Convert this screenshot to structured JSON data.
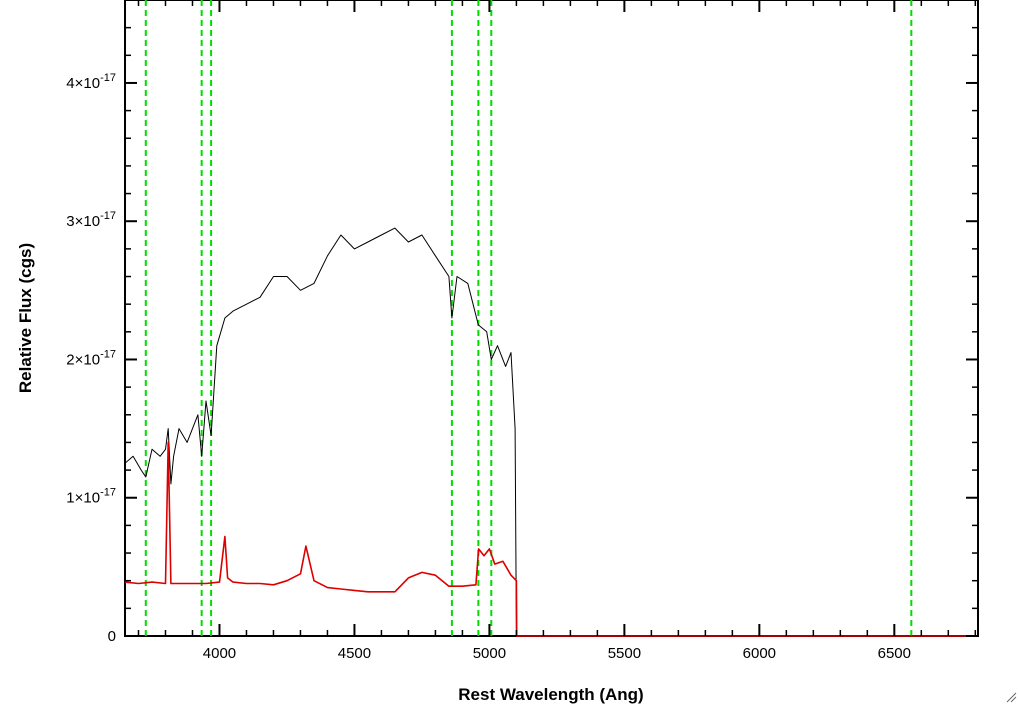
{
  "chart_data": {
    "type": "line",
    "xlabel": "Rest Wavelength (Ang)",
    "ylabel": "Relative Flux (cgs)",
    "xlim": [
      3650,
      6810
    ],
    "ylim": [
      0,
      4.6e-17
    ],
    "grid": false,
    "x_ticks": [
      {
        "value": 4000,
        "label": "4000"
      },
      {
        "value": 4500,
        "label": "4500"
      },
      {
        "value": 5000,
        "label": "5000"
      },
      {
        "value": 5500,
        "label": "5500"
      },
      {
        "value": 6000,
        "label": "6000"
      },
      {
        "value": 6500,
        "label": "6500"
      }
    ],
    "y_ticks": [
      {
        "value": 0,
        "mantissa": "0",
        "exponent": ""
      },
      {
        "value": 1e-17,
        "mantissa": "1×10",
        "exponent": "-17"
      },
      {
        "value": 2e-17,
        "mantissa": "2×10",
        "exponent": "-17"
      },
      {
        "value": 3e-17,
        "mantissa": "3×10",
        "exponent": "-17"
      },
      {
        "value": 4e-17,
        "mantissa": "4×10",
        "exponent": "-17"
      }
    ],
    "vertical_lines": {
      "color": "#00dd00",
      "style": "dashed",
      "x": [
        3727,
        3934,
        3969,
        4861,
        4959,
        5007,
        6563
      ]
    },
    "series": [
      {
        "color": "#000000",
        "x": [
          3650,
          3680,
          3710,
          3727,
          3750,
          3780,
          3800,
          3810,
          3820,
          3830,
          3850,
          3880,
          3900,
          3920,
          3934,
          3950,
          3969,
          3990,
          4020,
          4050,
          4100,
          4150,
          4200,
          4250,
          4300,
          4350,
          4400,
          4450,
          4500,
          4550,
          4600,
          4650,
          4700,
          4750,
          4800,
          4850,
          4861,
          4880,
          4920,
          4959,
          4990,
          5007,
          5030,
          5060,
          5080,
          5095,
          5100
        ],
        "y": [
          1.25e-17,
          1.3e-17,
          1.2e-17,
          1.15e-17,
          1.35e-17,
          1.3e-17,
          1.35e-17,
          1.5e-17,
          1.1e-17,
          1.3e-17,
          1.5e-17,
          1.4e-17,
          1.5e-17,
          1.6e-17,
          1.3e-17,
          1.7e-17,
          1.45e-17,
          2.1e-17,
          2.3e-17,
          2.35e-17,
          2.4e-17,
          2.45e-17,
          2.6e-17,
          2.6e-17,
          2.5e-17,
          2.55e-17,
          2.75e-17,
          2.9e-17,
          2.8e-17,
          2.85e-17,
          2.9e-17,
          2.95e-17,
          2.85e-17,
          2.9e-17,
          2.75e-17,
          2.6e-17,
          2.3e-17,
          2.6e-17,
          2.55e-17,
          2.25e-17,
          2.2e-17,
          2e-17,
          2.1e-17,
          1.95e-17,
          2.05e-17,
          1.5e-17,
          0
        ]
      },
      {
        "color": "#dd0000",
        "x": [
          3650,
          3700,
          3750,
          3800,
          3810,
          3820,
          3850,
          3900,
          3950,
          4000,
          4020,
          4030,
          4050,
          4100,
          4150,
          4200,
          4250,
          4300,
          4320,
          4350,
          4400,
          4450,
          4500,
          4550,
          4600,
          4650,
          4700,
          4750,
          4800,
          4850,
          4900,
          4950,
          4960,
          4980,
          5000,
          5020,
          5050,
          5080,
          5100,
          5101,
          5500,
          6000,
          6500,
          6810
        ],
        "y": [
          3.9e-18,
          3.8e-18,
          3.9e-18,
          3.8e-18,
          1.4e-17,
          3.8e-18,
          3.8e-18,
          3.8e-18,
          3.8e-18,
          3.9e-18,
          7.2e-18,
          4.2e-18,
          3.9e-18,
          3.8e-18,
          3.8e-18,
          3.7e-18,
          4e-18,
          4.5e-18,
          6.5e-18,
          4e-18,
          3.5e-18,
          3.4e-18,
          3.3e-18,
          3.2e-18,
          3.2e-18,
          3.2e-18,
          4.2e-18,
          4.6e-18,
          4.4e-18,
          3.6e-18,
          3.6e-18,
          3.7e-18,
          6.3e-18,
          5.8e-18,
          6.3e-18,
          5.2e-18,
          5.4e-18,
          4.4e-18,
          4e-18,
          0,
          0,
          0,
          0,
          0
        ]
      }
    ]
  }
}
